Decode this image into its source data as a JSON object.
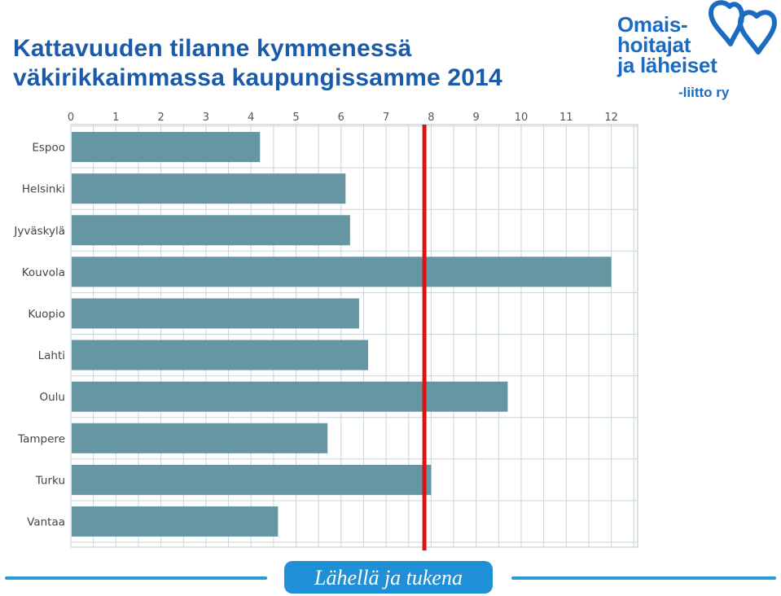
{
  "title": {
    "line1": "Kattavuuden tilanne kymmenessä",
    "line2": "väkirikkaimmassa kaupungissamme 2014"
  },
  "logo": {
    "line1": "Omais-",
    "line2": "hoitajat",
    "line3": "ja läheiset",
    "line4": "-liitto ry",
    "color": "#1b6cc1"
  },
  "footer": {
    "slogan": "Lähellä ja tukena",
    "color": "#1f8fd6"
  },
  "chart_data": {
    "type": "bar",
    "orientation": "horizontal",
    "categories": [
      "Espoo",
      "Helsinki",
      "Jyväskylä",
      "Kouvola",
      "Kuopio",
      "Lahti",
      "Oulu",
      "Tampere",
      "Turku",
      "Vantaa"
    ],
    "values": [
      4.2,
      6.1,
      6.2,
      12.0,
      6.4,
      6.6,
      9.7,
      5.7,
      8.0,
      4.6
    ],
    "xlim": [
      0,
      12.6
    ],
    "xticks": [
      0,
      1,
      2,
      3,
      4,
      5,
      6,
      7,
      8,
      9,
      10,
      11,
      12
    ],
    "reference_line": 7.85,
    "grid": true,
    "bar_color": "#6596a1",
    "reference_color": "#e01010",
    "grid_color": "#c9d6da"
  }
}
